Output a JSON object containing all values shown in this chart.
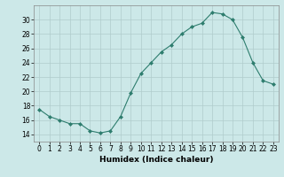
{
  "x": [
    0,
    1,
    2,
    3,
    4,
    5,
    6,
    7,
    8,
    9,
    10,
    11,
    12,
    13,
    14,
    15,
    16,
    17,
    18,
    19,
    20,
    21,
    22,
    23
  ],
  "y": [
    17.5,
    16.5,
    16.0,
    15.5,
    15.5,
    14.5,
    14.2,
    14.5,
    16.5,
    19.8,
    22.5,
    24.0,
    25.5,
    26.5,
    28.0,
    29.0,
    29.5,
    31.0,
    30.8,
    30.0,
    27.5,
    24.0,
    21.5,
    21.0
  ],
  "line_color": "#2e7d6e",
  "marker": "D",
  "marker_size": 2,
  "bg_color": "#cce8e8",
  "grid_color": "#b0cccc",
  "xlabel": "Humidex (Indice chaleur)",
  "xlim": [
    -0.5,
    23.5
  ],
  "ylim": [
    13,
    32
  ],
  "yticks": [
    14,
    16,
    18,
    20,
    22,
    24,
    26,
    28,
    30
  ],
  "xticks": [
    0,
    1,
    2,
    3,
    4,
    5,
    6,
    7,
    8,
    9,
    10,
    11,
    12,
    13,
    14,
    15,
    16,
    17,
    18,
    19,
    20,
    21,
    22,
    23
  ],
  "tick_fontsize": 5.5,
  "xlabel_fontsize": 6.5,
  "label_color": "#000000",
  "spine_color": "#888888"
}
